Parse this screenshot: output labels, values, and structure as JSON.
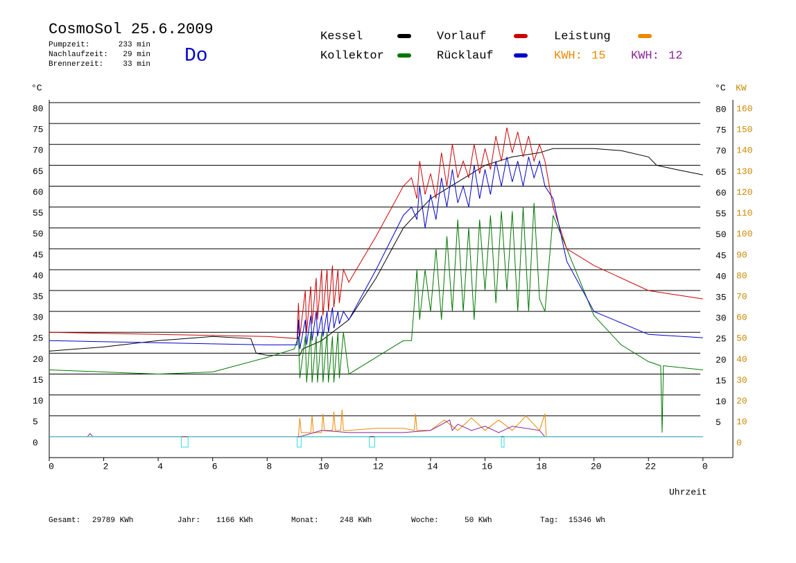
{
  "chart_data": {
    "type": "line",
    "title": "CosmoSol 25.6.2009",
    "day": "Do",
    "info": [
      {
        "label": "Pumpzeit:",
        "value": "233 min"
      },
      {
        "label": "Nachlaufzeit:",
        "value": "29 min"
      },
      {
        "label": "Brennerzeit:",
        "value": "33 min"
      }
    ],
    "ylabel": "°C",
    "y2label": "KW",
    "xlabel": "Uhrzeit",
    "xlim": [
      0,
      25.1
    ],
    "xticks": [
      0,
      2,
      4,
      6,
      8,
      10,
      12,
      14,
      16,
      18,
      20,
      22,
      {
        "value": 24,
        "label": "0"
      }
    ],
    "ylim": [
      -5,
      80
    ],
    "yticks": [
      0,
      5,
      10,
      15,
      20,
      25,
      30,
      35,
      40,
      45,
      50,
      55,
      60,
      65,
      70,
      75,
      80
    ],
    "y2lim": [
      -10,
      160
    ],
    "y2ticks": [
      0,
      10,
      20,
      30,
      40,
      50,
      60,
      70,
      80,
      90,
      100,
      110,
      120,
      130,
      140,
      150,
      160
    ],
    "grid": true,
    "series": [
      {
        "name": "Kessel",
        "color": "#000000",
        "x": [
          0,
          2,
          4,
          6,
          7.4,
          7.6,
          8,
          9.2,
          9.3,
          10,
          11,
          12,
          13,
          14,
          15,
          16,
          17,
          18,
          18.5,
          20,
          21,
          22,
          22.3,
          23,
          24
        ],
        "values": [
          20.5,
          21.5,
          23,
          24,
          23.5,
          20,
          19.5,
          19.5,
          21,
          23,
          28,
          38,
          50,
          57,
          61,
          65,
          67,
          68,
          69,
          69,
          68.5,
          67,
          65,
          64,
          62.7
        ]
      },
      {
        "name": "Kollektor",
        "color": "#007700",
        "x": [
          0,
          4,
          6,
          8,
          9,
          9.15,
          9.2,
          9.4,
          9.45,
          9.6,
          9.65,
          9.8,
          9.85,
          10,
          10.05,
          10.2,
          10.25,
          10.4,
          10.45,
          10.6,
          10.65,
          10.8,
          11,
          12,
          13,
          13.3,
          13.5,
          13.6,
          13.8,
          14,
          14.2,
          14.4,
          14.6,
          14.8,
          15,
          15.2,
          15.4,
          15.6,
          15.8,
          16,
          16.2,
          16.4,
          16.6,
          16.8,
          17,
          17.2,
          17.4,
          17.6,
          17.8,
          18,
          18.2,
          18.5,
          19,
          20,
          21,
          22,
          22.45,
          22.5,
          22.55,
          24
        ],
        "values": [
          16,
          15,
          15.5,
          19,
          21,
          24,
          14,
          24,
          13,
          25,
          13,
          24,
          13,
          25,
          13,
          25,
          13,
          24,
          13,
          25,
          14,
          25,
          15,
          19,
          23,
          23,
          40,
          28,
          40,
          30,
          45,
          28,
          48,
          30,
          52,
          30,
          50,
          28,
          52,
          35,
          53,
          32,
          54,
          35,
          54,
          30,
          55,
          30,
          56,
          33,
          30,
          53,
          45,
          29,
          22,
          18,
          17,
          1,
          17,
          16
        ]
      },
      {
        "name": "Vorlauf",
        "color": "#cc0000",
        "x": [
          0,
          4,
          8,
          9.1,
          9.15,
          9.2,
          9.4,
          9.45,
          9.6,
          9.65,
          9.8,
          9.85,
          10,
          10.05,
          10.2,
          10.25,
          10.4,
          10.45,
          10.6,
          10.65,
          10.8,
          11,
          12,
          13,
          13.3,
          13.5,
          13.6,
          13.8,
          14,
          14.2,
          14.4,
          14.6,
          14.8,
          15,
          15.2,
          15.4,
          15.6,
          15.8,
          16,
          16.2,
          16.4,
          16.6,
          16.8,
          17,
          17.2,
          17.4,
          17.6,
          17.8,
          18,
          18.2,
          18.5,
          19,
          20,
          22,
          24
        ],
        "values": [
          25,
          24.5,
          24,
          23.5,
          32,
          24,
          35,
          25,
          36,
          27,
          38,
          28,
          40,
          29,
          40,
          30,
          41,
          31,
          40,
          32,
          40,
          37,
          48,
          60,
          62,
          57,
          66,
          58,
          63,
          57,
          68,
          60,
          70,
          62,
          66,
          62,
          70,
          63,
          69,
          64,
          72,
          66,
          74,
          68,
          73,
          67,
          72,
          66,
          70,
          66,
          55,
          45,
          41,
          35,
          33
        ]
      },
      {
        "name": "Rücklauf",
        "color": "#0000cc",
        "x": [
          0,
          4,
          8,
          9.1,
          9.15,
          9.2,
          9.4,
          9.45,
          9.6,
          9.65,
          9.8,
          9.85,
          10,
          10.05,
          10.2,
          10.25,
          10.4,
          10.45,
          10.6,
          10.65,
          10.8,
          11,
          12,
          13,
          13.3,
          13.5,
          13.6,
          13.8,
          14,
          14.2,
          14.4,
          14.6,
          14.8,
          15,
          15.2,
          15.4,
          15.6,
          15.8,
          16,
          16.2,
          16.4,
          16.6,
          16.8,
          17,
          17.2,
          17.4,
          17.6,
          17.8,
          18,
          18.2,
          18.5,
          19,
          20,
          22,
          24
        ],
        "values": [
          23,
          22.5,
          22,
          22,
          28,
          21,
          28,
          22,
          29,
          23,
          30,
          24,
          29,
          24,
          30,
          25,
          31,
          26,
          30,
          27,
          30,
          28,
          40,
          53,
          55,
          52,
          60,
          50,
          58,
          52,
          62,
          55,
          64,
          56,
          60,
          55,
          65,
          57,
          64,
          58,
          66,
          60,
          67,
          61,
          66,
          60,
          67,
          62,
          66,
          60,
          57,
          42,
          30,
          24.5,
          23.7
        ]
      },
      {
        "name": "Leistung",
        "color": "#ee8800",
        "axis": "y2",
        "kwh_label": "KWH:",
        "kwh": 15,
        "x": [
          0,
          9.15,
          9.2,
          9.25,
          9.6,
          9.65,
          9.7,
          10,
          10.05,
          10.1,
          10.4,
          10.45,
          10.5,
          10.7,
          10.75,
          10.8,
          11,
          12,
          13,
          13.4,
          13.45,
          13.5,
          14,
          14.5,
          15,
          15.5,
          16,
          16.5,
          17,
          17.5,
          18,
          18.2,
          18.25,
          24
        ],
        "values": [
          0,
          0,
          9,
          2,
          2,
          10,
          2,
          2,
          11,
          3,
          3,
          12,
          3,
          3,
          13,
          3,
          3,
          4,
          4,
          3,
          11,
          3,
          3,
          8,
          3,
          9,
          3,
          8,
          3,
          10,
          3,
          11,
          0,
          0
        ]
      },
      {
        "color": "#882299",
        "axis": "y2",
        "kwh_label": "KWH:",
        "kwh": 12,
        "x": [
          0,
          1.4,
          1.5,
          1.6,
          9.2,
          10,
          11,
          12,
          13,
          14,
          14.7,
          14.8,
          15,
          15.5,
          16,
          16.5,
          17,
          18,
          18.2,
          24
        ],
        "values": [
          0,
          0,
          1.5,
          0,
          0,
          3,
          2,
          2,
          2,
          3,
          8,
          3,
          6,
          3,
          5,
          2,
          5,
          3,
          0,
          0
        ]
      },
      {
        "color": "#33dddd",
        "x": [
          0,
          4.85,
          4.85,
          5.1,
          5.1,
          9.1,
          9.1,
          9.25,
          9.25,
          11.75,
          11.75,
          11.95,
          11.95,
          16.6,
          16.6,
          16.7,
          16.7,
          24
        ],
        "values": [
          0,
          0,
          -2.5,
          -2.5,
          0,
          0,
          -2.5,
          -2.5,
          0,
          0,
          -2.5,
          -2.5,
          0,
          0,
          -2.5,
          -2.5,
          0,
          0
        ]
      }
    ],
    "footer": [
      {
        "label": "Gesamt:",
        "value": "29789 KWh"
      },
      {
        "label": "Jahr:",
        "value": "1166 KWh"
      },
      {
        "label": "Monat:",
        "value": "248 KWh"
      },
      {
        "label": "Woche:",
        "value": "50 KWh"
      },
      {
        "label": "Tag:",
        "value": "15346 Wh"
      }
    ]
  }
}
